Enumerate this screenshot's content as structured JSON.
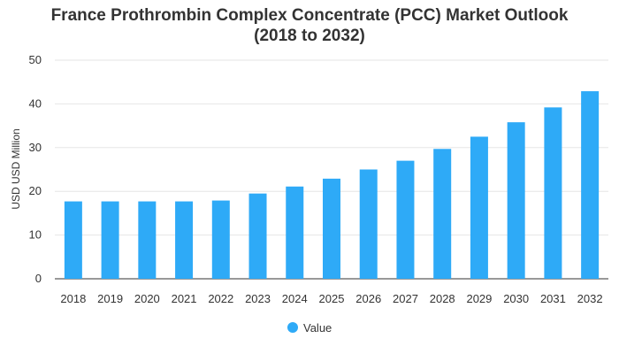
{
  "chart_data": {
    "type": "bar",
    "title_line1": "France Prothrombin Complex Concentrate (PCC) Market Outlook",
    "title_line2": "(2018 to 2032)",
    "categories": [
      "2018",
      "2019",
      "2020",
      "2021",
      "2022",
      "2023",
      "2024",
      "2025",
      "2026",
      "2027",
      "2028",
      "2029",
      "2030",
      "2031",
      "2032"
    ],
    "series": [
      {
        "name": "Value",
        "values": [
          17.7,
          17.7,
          17.7,
          17.7,
          17.9,
          19.5,
          21.1,
          22.9,
          25.0,
          27.0,
          29.7,
          32.5,
          35.8,
          39.2,
          42.9
        ]
      }
    ],
    "ylabel": "USD USD Million",
    "xlabel": "",
    "ylim": [
      0,
      50
    ],
    "yticks": [
      0,
      10,
      20,
      30,
      40,
      50
    ],
    "grid": true,
    "legend_position": "bottom-center",
    "bar_color": "#2eaaf7"
  }
}
